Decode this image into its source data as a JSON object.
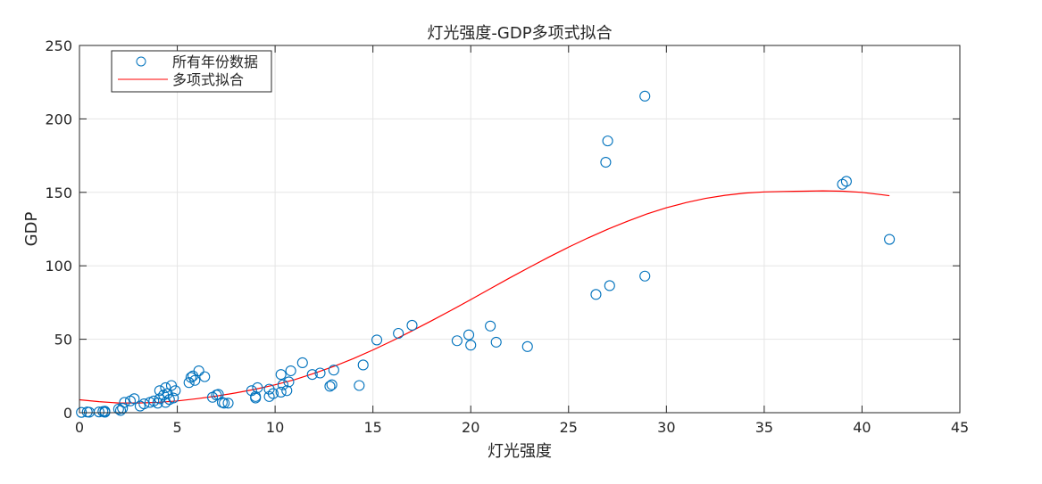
{
  "chart_data": {
    "type": "scatter",
    "title": "灯光强度-GDP多项式拟合",
    "xlabel": "灯光强度",
    "ylabel": "GDP",
    "xlim": [
      0,
      45
    ],
    "ylim": [
      0,
      250
    ],
    "xticks": [
      0,
      5,
      10,
      15,
      20,
      25,
      30,
      35,
      40,
      45
    ],
    "yticks": [
      0,
      50,
      100,
      150,
      200,
      250
    ],
    "grid": true,
    "legend_position": "top-left",
    "colors": {
      "scatter": "#0072BD",
      "fit": "#FF0000",
      "grid": "#E5E5E5",
      "axis": "#262626"
    },
    "series": [
      {
        "name": "所有年份数据",
        "kind": "scatter",
        "points": [
          [
            0.1,
            0.2
          ],
          [
            0.4,
            0.5
          ],
          [
            0.5,
            0.3
          ],
          [
            1.0,
            0.5
          ],
          [
            1.2,
            0.8
          ],
          [
            1.3,
            1.0
          ],
          [
            1.3,
            0.3
          ],
          [
            2.0,
            2.5
          ],
          [
            2.1,
            1.5
          ],
          [
            2.2,
            3.0
          ],
          [
            2.3,
            7.0
          ],
          [
            2.6,
            8.0
          ],
          [
            2.8,
            9.5
          ],
          [
            3.1,
            4.5
          ],
          [
            3.3,
            6.0
          ],
          [
            3.6,
            7.0
          ],
          [
            3.8,
            8.0
          ],
          [
            4.0,
            6.5
          ],
          [
            4.1,
            9.5
          ],
          [
            4.1,
            15.0
          ],
          [
            4.3,
            12.0
          ],
          [
            4.4,
            7.0
          ],
          [
            4.4,
            17.0
          ],
          [
            4.5,
            13.0
          ],
          [
            4.6,
            9.0
          ],
          [
            4.7,
            18.5
          ],
          [
            4.8,
            10.0
          ],
          [
            4.9,
            15.0
          ],
          [
            5.6,
            20.5
          ],
          [
            5.7,
            24.0
          ],
          [
            5.8,
            25.0
          ],
          [
            5.9,
            22.0
          ],
          [
            6.1,
            28.5
          ],
          [
            6.4,
            24.5
          ],
          [
            6.8,
            10.5
          ],
          [
            7.0,
            12.0
          ],
          [
            7.1,
            12.5
          ],
          [
            7.3,
            7.0
          ],
          [
            7.4,
            6.5
          ],
          [
            7.6,
            6.5
          ],
          [
            8.8,
            15.0
          ],
          [
            9.0,
            10.0
          ],
          [
            9.0,
            11.0
          ],
          [
            9.1,
            17.0
          ],
          [
            9.7,
            16.0
          ],
          [
            9.7,
            11.0
          ],
          [
            9.9,
            13.0
          ],
          [
            10.3,
            26.0
          ],
          [
            10.3,
            14.0
          ],
          [
            10.4,
            19.0
          ],
          [
            10.6,
            15.0
          ],
          [
            10.7,
            21.0
          ],
          [
            10.8,
            28.5
          ],
          [
            11.4,
            34.0
          ],
          [
            11.9,
            26.0
          ],
          [
            12.3,
            27.0
          ],
          [
            12.8,
            18.0
          ],
          [
            12.9,
            19.0
          ],
          [
            13.0,
            29.0
          ],
          [
            14.3,
            18.5
          ],
          [
            14.5,
            32.5
          ],
          [
            15.2,
            49.5
          ],
          [
            16.3,
            54.0
          ],
          [
            17.0,
            59.5
          ],
          [
            19.3,
            49.0
          ],
          [
            19.9,
            53.0
          ],
          [
            20.0,
            46.0
          ],
          [
            21.0,
            59.0
          ],
          [
            21.3,
            48.0
          ],
          [
            22.9,
            45.0
          ],
          [
            26.4,
            80.5
          ],
          [
            26.9,
            170.5
          ],
          [
            27.0,
            185.0
          ],
          [
            27.1,
            86.5
          ],
          [
            28.9,
            93.0
          ],
          [
            28.9,
            215.5
          ],
          [
            39.0,
            155.5
          ],
          [
            39.2,
            157.5
          ],
          [
            41.4,
            118.0
          ]
        ]
      },
      {
        "name": "多项式拟合",
        "kind": "line",
        "points": [
          [
            0,
            8.8
          ],
          [
            1,
            7.5
          ],
          [
            2,
            6.6
          ],
          [
            3,
            6.6
          ],
          [
            4,
            7.0
          ],
          [
            5,
            8.0
          ],
          [
            6,
            9.5
          ],
          [
            7,
            11.3
          ],
          [
            8,
            13.5
          ],
          [
            9,
            16.0
          ],
          [
            10,
            19.0
          ],
          [
            11,
            22.5
          ],
          [
            12,
            26.8
          ],
          [
            13,
            31.5
          ],
          [
            14,
            36.8
          ],
          [
            15,
            42.7
          ],
          [
            16,
            49.0
          ],
          [
            17,
            55.7
          ],
          [
            18,
            62.6
          ],
          [
            19,
            69.7
          ],
          [
            20,
            77.0
          ],
          [
            21,
            84.4
          ],
          [
            22,
            91.8
          ],
          [
            23,
            99.0
          ],
          [
            24,
            106.0
          ],
          [
            25,
            112.7
          ],
          [
            26,
            119.0
          ],
          [
            27,
            124.9
          ],
          [
            28,
            130.3
          ],
          [
            29,
            135.3
          ],
          [
            30,
            139.5
          ],
          [
            31,
            143.0
          ],
          [
            32,
            145.9
          ],
          [
            33,
            148.0
          ],
          [
            34,
            149.5
          ],
          [
            35,
            150.3
          ],
          [
            36,
            150.6
          ],
          [
            37,
            150.8
          ],
          [
            38,
            151.0
          ],
          [
            39,
            150.8
          ],
          [
            40,
            150.0
          ],
          [
            41,
            148.4
          ],
          [
            41.4,
            147.7
          ]
        ]
      }
    ]
  }
}
